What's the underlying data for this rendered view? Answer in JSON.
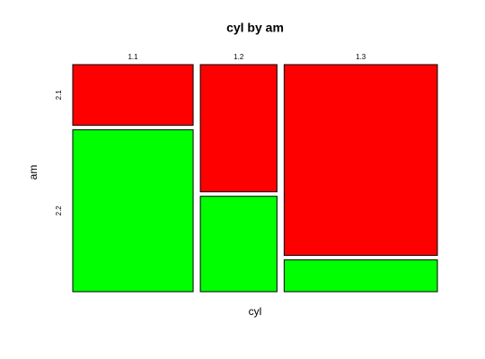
{
  "chart_data": {
    "type": "mosaic",
    "title": "cyl by am",
    "xlabel": "cyl",
    "ylabel": "am",
    "categories": [
      "1.1",
      "1.2",
      "1.3"
    ],
    "series": [
      {
        "name": "2.1",
        "color": "#ff0000",
        "values": [
          3,
          4,
          12
        ]
      },
      {
        "name": "2.2",
        "color": "#00ff00",
        "values": [
          8,
          3,
          2
        ]
      }
    ]
  }
}
